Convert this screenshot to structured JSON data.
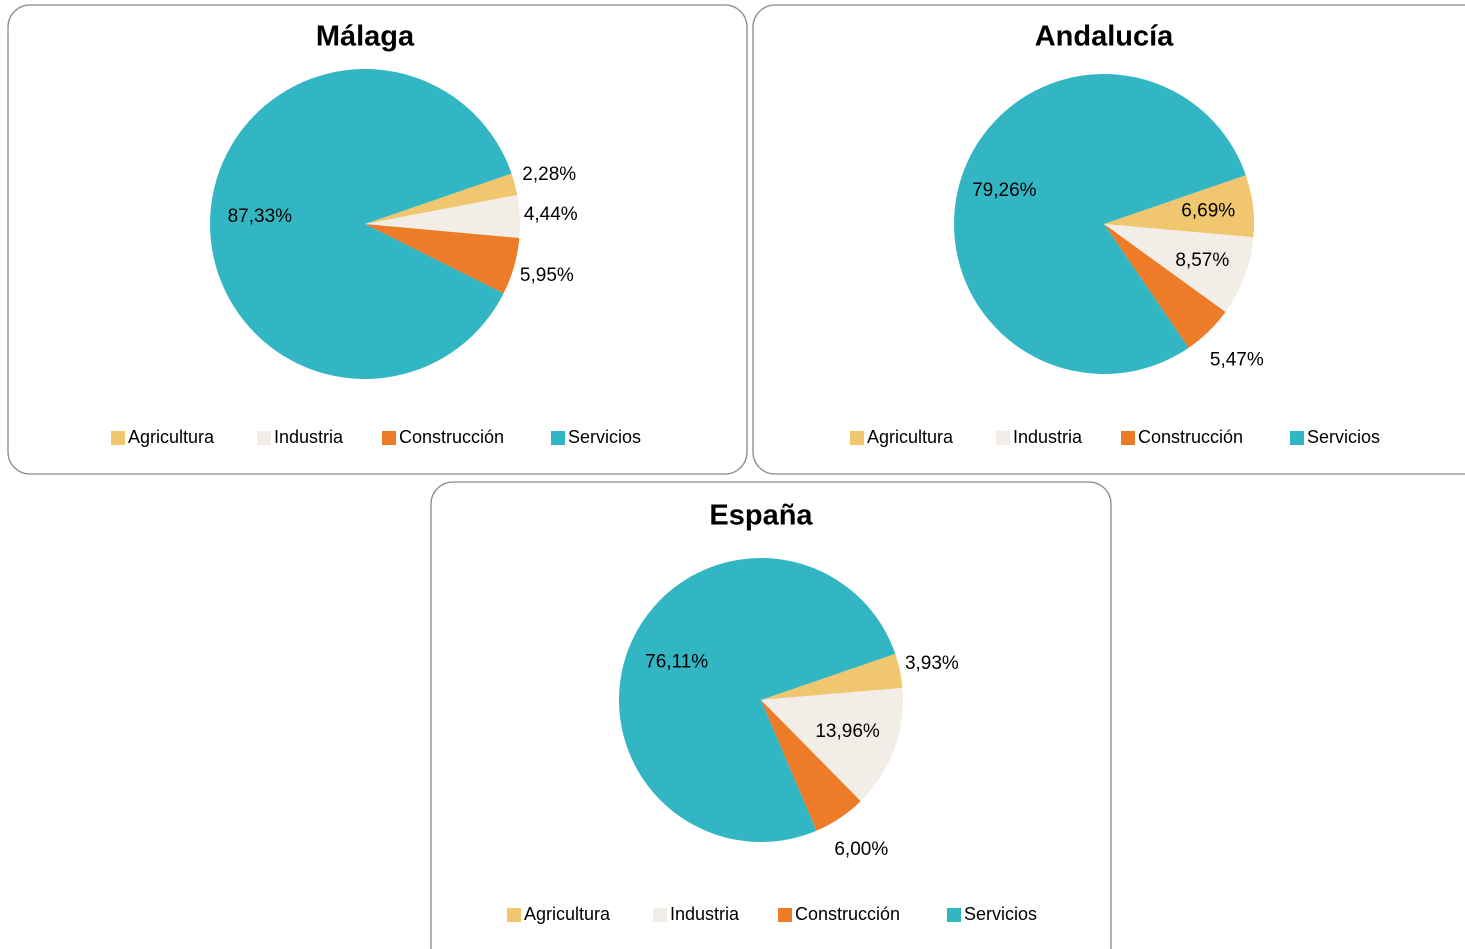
{
  "chart_data": [
    {
      "type": "pie",
      "title": "Málaga",
      "categories": [
        "Agricultura",
        "Industria",
        "Construcción",
        "Servicios"
      ],
      "values": [
        2.28,
        4.44,
        5.95,
        87.33
      ],
      "value_labels": [
        "2,28%",
        "4,44%",
        "5,95%",
        "87,33%"
      ],
      "colors": [
        "#f0c66e",
        "#f2ede6",
        "#ee7b28",
        "#33b6c4"
      ]
    },
    {
      "type": "pie",
      "title": "Andalucía",
      "categories": [
        "Agricultura",
        "Industria",
        "Construcción",
        "Servicios"
      ],
      "values": [
        6.69,
        8.57,
        5.47,
        79.26
      ],
      "value_labels": [
        "6,69%",
        "8,57%",
        "5,47%",
        "79,26%"
      ],
      "colors": [
        "#f0c66e",
        "#f2ede6",
        "#ee7b28",
        "#33b6c4"
      ]
    },
    {
      "type": "pie",
      "title": "España",
      "categories": [
        "Agricultura",
        "Industria",
        "Construcción",
        "Servicios"
      ],
      "values": [
        3.93,
        13.96,
        6.0,
        76.11
      ],
      "value_labels": [
        "3,93%",
        "13,96%",
        "6,00%",
        "76,11%"
      ],
      "colors": [
        "#f0c66e",
        "#f2ede6",
        "#ee7b28",
        "#33b6c4"
      ]
    }
  ]
}
